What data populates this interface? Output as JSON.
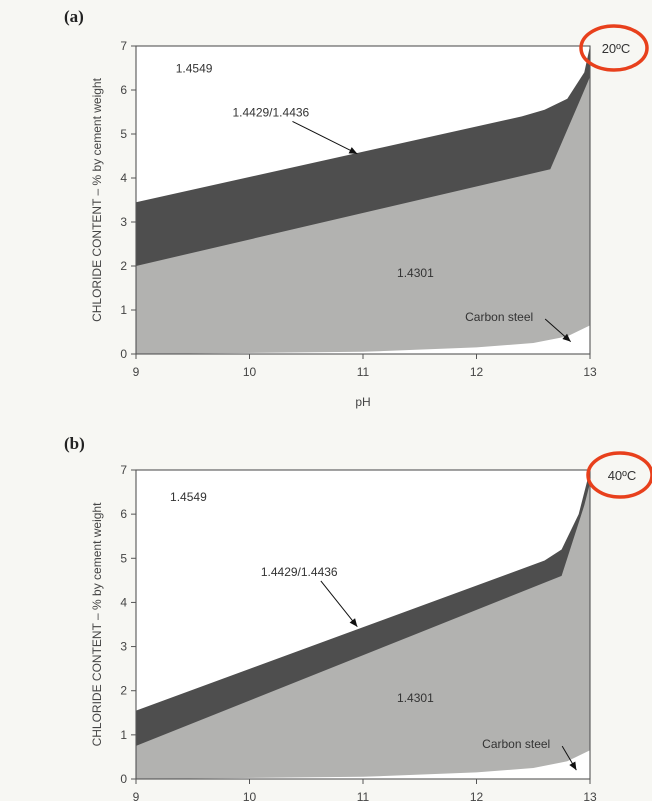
{
  "colors": {
    "background": "#f7f7f3",
    "plot_background": "#ffffff",
    "region_1_4301": "#b2b2b0",
    "region_1_4429_1_4436": "#4e4e4e",
    "region_1_4549": "#ffffff",
    "carbon_steel": "#ffffff",
    "axis": "#555555",
    "highlight_circle": "#e8401c"
  },
  "xlabel": "pH",
  "ylabel": "CHLORIDE CONTENT – % by cement weight",
  "chart_data": [
    {
      "type": "area",
      "panel_label": "(a)",
      "temperature": "20ºC",
      "xlim": [
        9,
        13
      ],
      "ylim": [
        0,
        7
      ],
      "x_ticks": [
        9,
        10,
        11,
        12,
        13
      ],
      "y_ticks": [
        0,
        1,
        2,
        3,
        4,
        5,
        6,
        7
      ],
      "xlabel": "pH",
      "ylabel": "CHLORIDE CONTENT – % by cement weight",
      "grid": false,
      "series": [
        {
          "name": "Carbon steel",
          "boundary_x": [
            9,
            11,
            12,
            12.5,
            12.8,
            13
          ],
          "boundary_y": [
            0,
            0.05,
            0.15,
            0.25,
            0.4,
            0.65
          ]
        },
        {
          "name": "1.4301",
          "boundary_x": [
            9,
            12.65,
            12.9,
            13
          ],
          "boundary_y": [
            2.0,
            4.2,
            5.7,
            6.3
          ]
        },
        {
          "name": "1.4429/1.4436",
          "boundary_x": [
            9,
            12.4,
            12.6,
            12.8,
            12.95,
            13
          ],
          "boundary_y": [
            3.45,
            5.4,
            5.55,
            5.8,
            6.4,
            7.0
          ]
        },
        {
          "name": "1.4549",
          "boundary_x": [
            9,
            13
          ],
          "boundary_y": [
            7,
            7
          ]
        }
      ],
      "annotations": [
        {
          "text": "1.4549",
          "x": 9.35,
          "y": 6.4
        },
        {
          "text": "1.4429/1.4436",
          "x": 9.85,
          "y": 5.4,
          "arrow_to_x": 10.95,
          "arrow_to_y": 4.55
        },
        {
          "text": "1.4301",
          "x": 11.3,
          "y": 1.75
        },
        {
          "text": "Carbon steel",
          "x": 11.9,
          "y": 0.75,
          "arrow_to_x": 12.83,
          "arrow_to_y": 0.28
        }
      ]
    },
    {
      "type": "area",
      "panel_label": "(b)",
      "temperature": "40ºC",
      "xlim": [
        9,
        13
      ],
      "ylim": [
        0,
        7
      ],
      "x_ticks": [
        9,
        10,
        11,
        12,
        13
      ],
      "y_ticks": [
        0,
        1,
        2,
        3,
        4,
        5,
        6,
        7
      ],
      "xlabel": "",
      "ylabel": "CHLORIDE CONTENT – % by cement weight",
      "grid": false,
      "series": [
        {
          "name": "Carbon steel",
          "boundary_x": [
            9,
            11,
            12,
            12.5,
            12.8,
            13
          ],
          "boundary_y": [
            0,
            0.05,
            0.15,
            0.25,
            0.4,
            0.65
          ]
        },
        {
          "name": "1.4301",
          "boundary_x": [
            9,
            12.75,
            12.95,
            13
          ],
          "boundary_y": [
            0.75,
            4.6,
            6.2,
            6.7
          ]
        },
        {
          "name": "1.4429/1.4436",
          "boundary_x": [
            9,
            12.6,
            12.75,
            12.9,
            13
          ],
          "boundary_y": [
            1.55,
            4.95,
            5.2,
            6.0,
            7.0
          ]
        },
        {
          "name": "1.4549",
          "boundary_x": [
            9,
            13
          ],
          "boundary_y": [
            7,
            7
          ]
        }
      ],
      "annotations": [
        {
          "text": "1.4549",
          "x": 9.3,
          "y": 6.3
        },
        {
          "text": "1.4429/1.4436",
          "x": 10.1,
          "y": 4.6,
          "arrow_to_x": 10.95,
          "arrow_to_y": 3.45
        },
        {
          "text": "1.4301",
          "x": 11.3,
          "y": 1.75
        },
        {
          "text": "Carbon steel",
          "x": 12.05,
          "y": 0.7,
          "arrow_to_x": 12.88,
          "arrow_to_y": 0.2
        }
      ]
    }
  ]
}
